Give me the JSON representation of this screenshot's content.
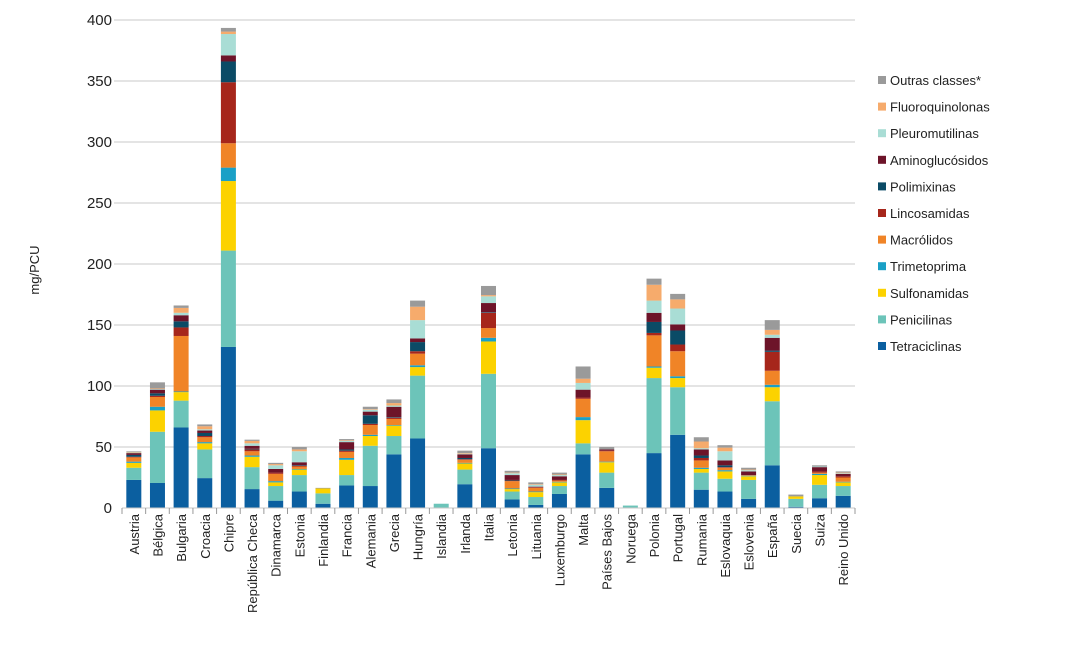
{
  "chart_data": {
    "type": "bar",
    "stacked": true,
    "title": "",
    "xlabel": "",
    "ylabel": "mg/PCU",
    "ylim": [
      0,
      400
    ],
    "yticks": [
      0,
      50,
      100,
      150,
      200,
      250,
      300,
      350,
      400
    ],
    "grid": true,
    "legend_position": "right",
    "categories": [
      "Austria",
      "Bélgica",
      "Bulgaria",
      "Croacia",
      "Chipre",
      "República Checa",
      "Dinamarca",
      "Estonia",
      "Finlandia",
      "Francia",
      "Alemania",
      "Grecia",
      "Hungría",
      "Islandia",
      "Irlanda",
      "Italia",
      "Letonia",
      "Lituania",
      "Luxemburgo",
      "Malta",
      "Países Bajos",
      "Noruega",
      "Polonia",
      "Portugal",
      "Rumania",
      "Eslovaquia",
      "Eslovenia",
      "España",
      "Suecia",
      "Suiza",
      "Reino Unido"
    ],
    "series": [
      {
        "name": "Tetraciclinas",
        "color": "#0b5fa0",
        "values": [
          23,
          20.5,
          66,
          24.5,
          132,
          15.5,
          6,
          13.5,
          3.5,
          18.5,
          18,
          44,
          57,
          0,
          19.5,
          49,
          7,
          2.5,
          11.5,
          44,
          16.5,
          0,
          45,
          60,
          15,
          13.5,
          7.5,
          35,
          1,
          8,
          10
        ]
      },
      {
        "name": "Penicilinas",
        "color": "#6cc4b9",
        "values": [
          10,
          42,
          22,
          23.5,
          79,
          18,
          12,
          13.5,
          8.5,
          8.5,
          33,
          15,
          51.5,
          3.5,
          12,
          61,
          6.5,
          6.5,
          6.5,
          9,
          12.5,
          2,
          61.5,
          39,
          14,
          10.5,
          15.5,
          52.5,
          6.5,
          11,
          8
        ]
      },
      {
        "name": "Sulfonamidas",
        "color": "#fcd200",
        "values": [
          4,
          17.5,
          7,
          5,
          57,
          8.5,
          3,
          4.5,
          4,
          12.5,
          8,
          8.5,
          7,
          0,
          5,
          26.5,
          2,
          4,
          3,
          19,
          8.5,
          0,
          8.5,
          7.5,
          3,
          6,
          3,
          11.5,
          2,
          8,
          3
        ]
      },
      {
        "name": "Trimetoprima",
        "color": "#1aa0c6",
        "values": [
          1,
          3,
          0.5,
          1,
          11,
          1,
          1,
          0.5,
          0,
          1.5,
          1,
          0.5,
          1.5,
          0,
          0.5,
          3,
          0.5,
          0.5,
          0.5,
          2.5,
          0.5,
          0,
          1,
          1.5,
          1,
          1,
          0.5,
          2,
          0,
          1,
          0.5
        ]
      },
      {
        "name": "Macrólidos",
        "color": "#f08427",
        "values": [
          3.5,
          8,
          45.5,
          4,
          20,
          3.5,
          6,
          2,
          0,
          5,
          8,
          5,
          9.5,
          0,
          2.5,
          8,
          6,
          3,
          1,
          15,
          8.5,
          0,
          25.5,
          20.5,
          6,
          2,
          0.5,
          11.5,
          0,
          1,
          3.5
        ]
      },
      {
        "name": "Lincosamidas",
        "color": "#a6261b",
        "values": [
          0.5,
          1,
          7,
          1,
          50,
          1.5,
          1,
          0.5,
          0,
          1,
          1,
          1,
          2,
          0,
          0.5,
          12.5,
          0.5,
          0.5,
          0.5,
          1,
          0.5,
          0,
          2,
          5.5,
          2,
          0.5,
          0,
          15.5,
          0,
          1,
          1
        ]
      },
      {
        "name": "Polimixinas",
        "color": "#0b4b66",
        "values": [
          1.5,
          2,
          5,
          2.5,
          17,
          0.5,
          0,
          0.5,
          0,
          1,
          7,
          0.5,
          7.5,
          0,
          1,
          0.5,
          0.5,
          0,
          0,
          0,
          0,
          0,
          9,
          11.5,
          2,
          1.5,
          0,
          1,
          0,
          0,
          0
        ]
      },
      {
        "name": "Aminoglucósidos",
        "color": "#6d1429",
        "values": [
          1.5,
          3,
          5,
          2,
          5,
          2.5,
          3,
          2.5,
          0,
          6,
          3,
          8.5,
          3,
          0,
          3,
          7.5,
          4,
          0.5,
          3,
          6.5,
          1,
          0,
          7.5,
          5,
          5,
          4,
          3,
          10.5,
          0,
          3.5,
          2
        ]
      },
      {
        "name": "Pleuromutilinas",
        "color": "#a9ddd5",
        "values": [
          0.5,
          0.5,
          2,
          1,
          17.5,
          2,
          3,
          9,
          0,
          1,
          1.5,
          1,
          15,
          0,
          0.5,
          5.5,
          1.5,
          1.5,
          1,
          5.5,
          0,
          0,
          10,
          13,
          1,
          7.5,
          1,
          2.5,
          0,
          0.5,
          0.5
        ]
      },
      {
        "name": "Fluoroquinolonas",
        "color": "#f6ab6c",
        "values": [
          0.5,
          0.5,
          4,
          2.5,
          2,
          2,
          1,
          1.5,
          0,
          0.5,
          0.5,
          2,
          11,
          0,
          0.5,
          1,
          0.5,
          0.5,
          0.5,
          3.5,
          0,
          0,
          13,
          7.5,
          5.5,
          3,
          0.5,
          4,
          0,
          0,
          0.5
        ]
      },
      {
        "name": "Outras classes*",
        "color": "#9a9a9a",
        "values": [
          0.5,
          5,
          2,
          1.5,
          3,
          1,
          1,
          2,
          0.5,
          1,
          2,
          3,
          5,
          0,
          2,
          7.5,
          1.5,
          1.5,
          1.5,
          10,
          2,
          0,
          5,
          4.5,
          3.5,
          2,
          1.5,
          8,
          1.5,
          1,
          1
        ]
      }
    ]
  }
}
